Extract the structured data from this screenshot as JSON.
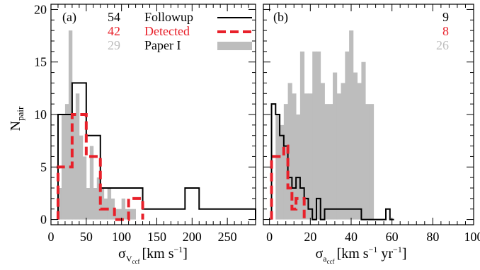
{
  "colors": {
    "followup": "#000000",
    "detected": "#e8202a",
    "paper1": "#bdbdbd"
  },
  "chart_data": [
    {
      "panel_label": "(a)",
      "type": "histogram",
      "xlabel": "σ",
      "xlabel_sub": "V",
      "xlabel_subsub": "ccf",
      "xlabel_unit": "[km s",
      "xlabel_unit_sup": "−1",
      "xlabel_unit_end": "]",
      "ylabel": "N",
      "ylabel_sub": "pair",
      "xlim": [
        0,
        290
      ],
      "ylim": [
        -0.5,
        20.5
      ],
      "xticks": [
        0,
        50,
        100,
        150,
        200,
        250
      ],
      "xtick_labels": [
        "0",
        "50",
        "100",
        "150",
        "200",
        "250"
      ],
      "yticks": [
        0,
        5,
        10,
        15,
        20
      ],
      "ytick_labels": [
        "0",
        "5",
        "10",
        "15",
        "20"
      ],
      "legend": [
        {
          "name": "Followup",
          "count": "54"
        },
        {
          "name": "Detected",
          "count": "42"
        },
        {
          "name": "Paper I",
          "count": "29"
        }
      ],
      "series": [
        {
          "name": "Followup",
          "style": "step",
          "edges": [
            10,
            30,
            50,
            70,
            130,
            190,
            210,
            290
          ],
          "values": [
            10,
            13,
            8,
            3,
            1,
            3,
            1
          ]
        },
        {
          "name": "Detected",
          "style": "step",
          "edges": [
            10,
            30,
            50,
            70,
            90,
            110,
            130
          ],
          "values": [
            5,
            10,
            6,
            1,
            0,
            2
          ]
        },
        {
          "name": "Paper I",
          "style": "fill",
          "edges": [
            10,
            15,
            20,
            25,
            30,
            35,
            40,
            45,
            50,
            55,
            60,
            65,
            70,
            75,
            80,
            85,
            90,
            95,
            100,
            105,
            110,
            115,
            120
          ],
          "values": [
            3,
            10,
            11,
            18,
            10,
            12,
            8,
            6,
            3,
            7,
            3,
            4,
            3,
            2,
            3,
            2,
            1,
            1,
            2,
            1,
            1,
            1
          ]
        }
      ]
    },
    {
      "panel_label": "(b)",
      "type": "histogram",
      "xlabel": "σ",
      "xlabel_sub": "a",
      "xlabel_subsub": "ccf",
      "xlabel_unit": "[km s",
      "xlabel_unit_sup": "−1",
      "xlabel_unit_mid": " yr",
      "xlabel_unit_sup2": "−1",
      "xlabel_unit_end": "]",
      "xlim": [
        -3,
        100
      ],
      "ylim": [
        -0.5,
        20.5
      ],
      "xticks": [
        0,
        20,
        40,
        60,
        80,
        100
      ],
      "xtick_labels": [
        "0",
        "20",
        "40",
        "60",
        "80",
        "100"
      ],
      "yticks": [
        0,
        5,
        10,
        15,
        20
      ],
      "legend": [
        {
          "name": "Followup",
          "count": "9"
        },
        {
          "name": "Detected",
          "count": "8"
        },
        {
          "name": "Paper I",
          "count": "26"
        }
      ],
      "series": [
        {
          "name": "Followup",
          "style": "step",
          "edges": [
            1,
            3,
            5,
            7,
            9,
            11,
            13,
            15,
            17,
            19,
            21,
            23,
            25,
            27,
            29,
            31,
            33,
            35,
            37,
            39,
            41,
            43,
            45,
            47,
            57,
            59,
            61
          ],
          "values": [
            11,
            10,
            8,
            7,
            4,
            3,
            4,
            3,
            2,
            1,
            0,
            2,
            0,
            1,
            1,
            1,
            1,
            1,
            1,
            1,
            1,
            1,
            0,
            0,
            1,
            0
          ]
        },
        {
          "name": "Detected",
          "style": "step",
          "edges": [
            1,
            3,
            5,
            7,
            9,
            11,
            13,
            15,
            17
          ],
          "values": [
            6,
            6,
            6,
            7,
            3,
            1,
            2,
            2
          ]
        },
        {
          "name": "Paper I",
          "style": "fill",
          "edges": [
            3,
            5,
            7,
            9,
            11,
            13,
            15,
            17,
            19,
            21,
            23,
            25,
            27,
            29,
            31,
            33,
            35,
            37,
            39,
            41,
            43,
            45,
            47,
            49,
            51
          ],
          "values": [
            10,
            9,
            11,
            13,
            12,
            10,
            16,
            12,
            12,
            16,
            16,
            13,
            11,
            11,
            14,
            12,
            13,
            16,
            18,
            14,
            13,
            15,
            11,
            11
          ]
        }
      ]
    }
  ]
}
